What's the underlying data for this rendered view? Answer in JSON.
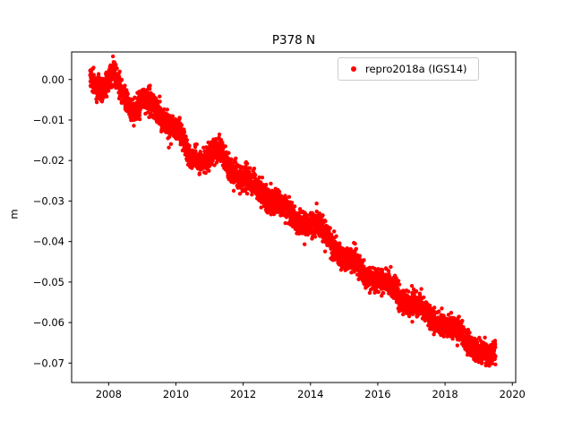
{
  "chart_data": {
    "type": "scatter",
    "title": "P378 N",
    "xlabel": "",
    "ylabel": "m",
    "grid": false,
    "legend_position": "upper right",
    "series": [
      {
        "name": "repro2018a (IGS14)",
        "color": "#ff0000",
        "marker": "dot",
        "marker_radius_px": 2.2,
        "x_start": 2007.45,
        "x_end": 2019.5,
        "n_points": 4400,
        "noise_sigma": 0.00145,
        "seasonal_amplitude": 0.0008,
        "trend_points": [
          [
            2007.45,
            0.0
          ],
          [
            2007.8,
            -0.002
          ],
          [
            2008.05,
            0.0
          ],
          [
            2008.15,
            0.001
          ],
          [
            2008.35,
            -0.003
          ],
          [
            2008.6,
            -0.006
          ],
          [
            2008.75,
            -0.007
          ],
          [
            2009.0,
            -0.005
          ],
          [
            2009.2,
            -0.006
          ],
          [
            2009.6,
            -0.009
          ],
          [
            2010.0,
            -0.012
          ],
          [
            2010.15,
            -0.014
          ],
          [
            2010.35,
            -0.019
          ],
          [
            2010.7,
            -0.02
          ],
          [
            2011.0,
            -0.019
          ],
          [
            2011.3,
            -0.018
          ],
          [
            2011.6,
            -0.022
          ],
          [
            2012.0,
            -0.024
          ],
          [
            2012.4,
            -0.027
          ],
          [
            2013.0,
            -0.03
          ],
          [
            2013.5,
            -0.034
          ],
          [
            2014.0,
            -0.036
          ],
          [
            2014.2,
            -0.036
          ],
          [
            2014.6,
            -0.04
          ],
          [
            2015.0,
            -0.044
          ],
          [
            2015.4,
            -0.046
          ],
          [
            2016.0,
            -0.05
          ],
          [
            2016.5,
            -0.052
          ],
          [
            2017.0,
            -0.056
          ],
          [
            2017.4,
            -0.057
          ],
          [
            2018.0,
            -0.061
          ],
          [
            2018.4,
            -0.062
          ],
          [
            2018.8,
            -0.065
          ],
          [
            2019.1,
            -0.068
          ],
          [
            2019.3,
            -0.069
          ],
          [
            2019.5,
            -0.067
          ]
        ]
      }
    ],
    "xlim": [
      2006.9,
      2020.1
    ],
    "ylim": [
      -0.0748,
      0.0068
    ],
    "xticks": [
      2008,
      2010,
      2012,
      2014,
      2016,
      2018,
      2020
    ],
    "xtick_labels": [
      "2008",
      "2010",
      "2012",
      "2014",
      "2016",
      "2018",
      "2020"
    ],
    "yticks": [
      0.0,
      -0.01,
      -0.02,
      -0.03,
      -0.04,
      -0.05,
      -0.06,
      -0.07
    ],
    "ytick_labels": [
      "0.00",
      "−0.01",
      "−0.02",
      "−0.03",
      "−0.04",
      "−0.05",
      "−0.06",
      "−0.07"
    ]
  },
  "colors": {
    "series": "#ff0000",
    "axes": "#000000",
    "legend_border": "#cccccc",
    "background": "#ffffff"
  }
}
